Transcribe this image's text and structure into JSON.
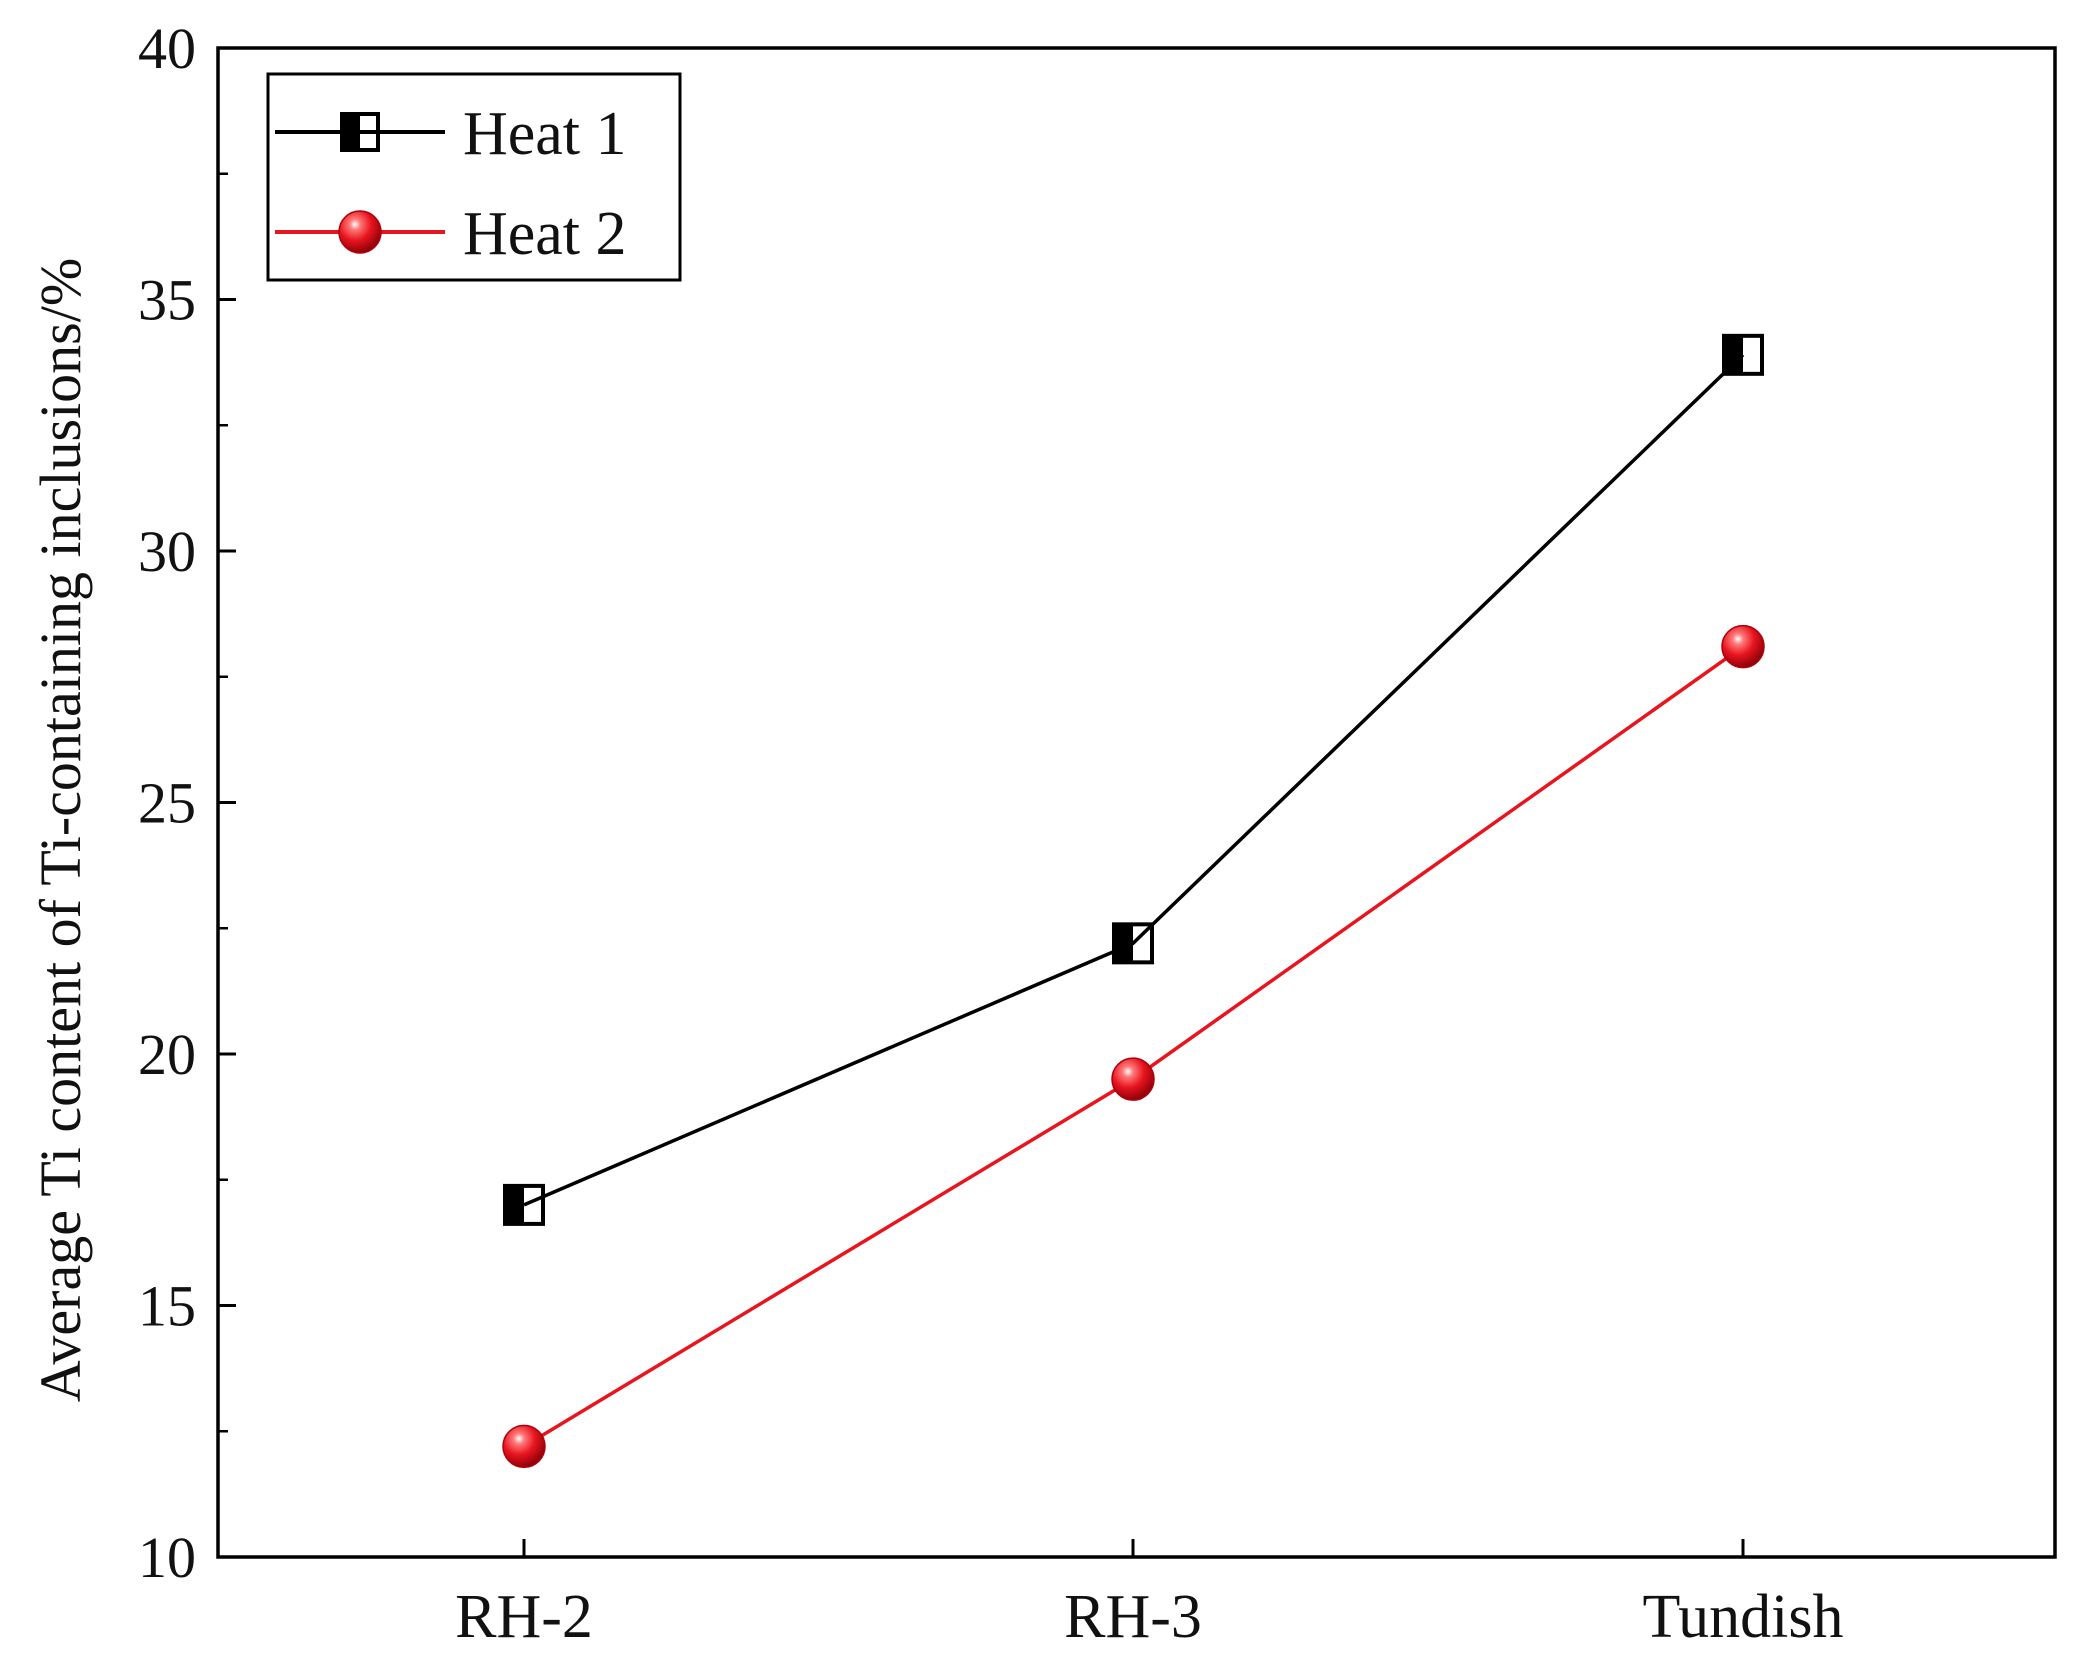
{
  "chart_data": {
    "type": "line",
    "title": "",
    "xlabel": "",
    "ylabel": "Average Ti content of Ti-containing inclusions/%",
    "categories": [
      "RH-2",
      "RH-3",
      "Tundish"
    ],
    "ylim": [
      10,
      40
    ],
    "yticks": [
      10,
      15,
      20,
      25,
      30,
      35,
      40
    ],
    "grid": false,
    "legend_position": "top-left",
    "series": [
      {
        "name": "Heat 1",
        "values": [
          17.0,
          22.2,
          33.9
        ],
        "color": "#000000",
        "marker": "half-filled-square"
      },
      {
        "name": "Heat 2",
        "values": [
          12.2,
          19.5,
          28.1
        ],
        "color": "#e8141e",
        "marker": "sphere"
      }
    ]
  }
}
